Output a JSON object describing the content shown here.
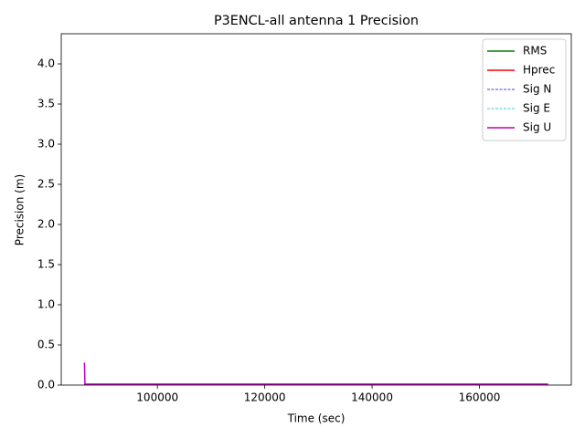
{
  "chart_data": {
    "type": "line",
    "title": "P3ENCL-all antenna 1 Precision",
    "x_label": "Time (sec)",
    "y_label": "Precision (m)",
    "x": [
      86400,
      86500,
      172800
    ],
    "series": [
      {
        "name": "RMS",
        "color": "#008000",
        "style": "solid",
        "values": [
          0.01,
          0.01,
          0.01
        ]
      },
      {
        "name": "Hprec",
        "color": "#ff0000",
        "style": "solid",
        "values": [
          0.01,
          0.01,
          0.01
        ]
      },
      {
        "name": "Sig N",
        "color": "#0000ff",
        "style": "dashed",
        "values": [
          0.01,
          0.01,
          0.01
        ]
      },
      {
        "name": "Sig E",
        "color": "#00bfbf",
        "style": "dashed",
        "values": [
          0.01,
          0.01,
          0.01
        ]
      },
      {
        "name": "Sig U",
        "color": "#bf00bf",
        "style": "solid",
        "values": [
          0.28,
          0.01,
          0.01
        ]
      }
    ],
    "xlim": [
      82080,
      177120
    ],
    "ylim": [
      0,
      4.375
    ],
    "xticks": [
      100000,
      120000,
      140000,
      160000
    ],
    "yticks": [
      {
        "value": 0,
        "label": "0.0"
      },
      0.5,
      {
        "value": 1,
        "label": "1.0"
      },
      1.5,
      {
        "value": 2,
        "label": "2.0"
      },
      2.5,
      {
        "value": 3,
        "label": "3.0"
      },
      3.5,
      {
        "value": 4,
        "label": "4.0"
      }
    ],
    "legend": "upper right"
  }
}
